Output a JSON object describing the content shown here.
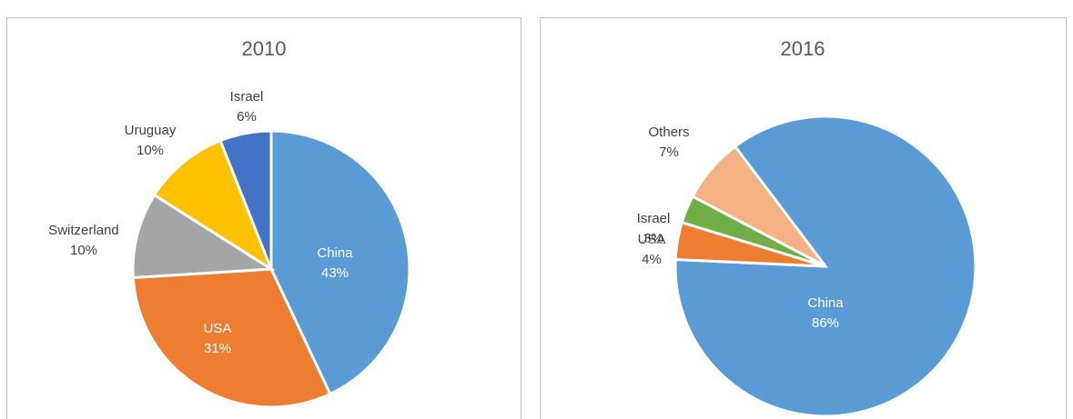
{
  "chart_data": [
    {
      "type": "pie",
      "title": "2010",
      "categories": [
        "China",
        "USA",
        "Switzerland",
        "Uruguay",
        "Israel"
      ],
      "values": [
        43,
        31,
        10,
        10,
        6
      ],
      "value_labels": [
        "43%",
        "31%",
        "10%",
        "10%",
        "6%"
      ],
      "colors": [
        "#5b9bd5",
        "#ed7d31",
        "#a5a5a5",
        "#ffc000",
        "#4472c4"
      ]
    },
    {
      "type": "pie",
      "title": "2016",
      "categories": [
        "China",
        "USA",
        "Israel",
        "Others"
      ],
      "values": [
        86,
        4,
        3,
        7
      ],
      "value_labels": [
        "86%",
        "4%",
        "3%",
        "7%"
      ],
      "colors": [
        "#5b9bd5",
        "#ed7d31",
        "#70ad47",
        "#f4b183"
      ]
    }
  ]
}
